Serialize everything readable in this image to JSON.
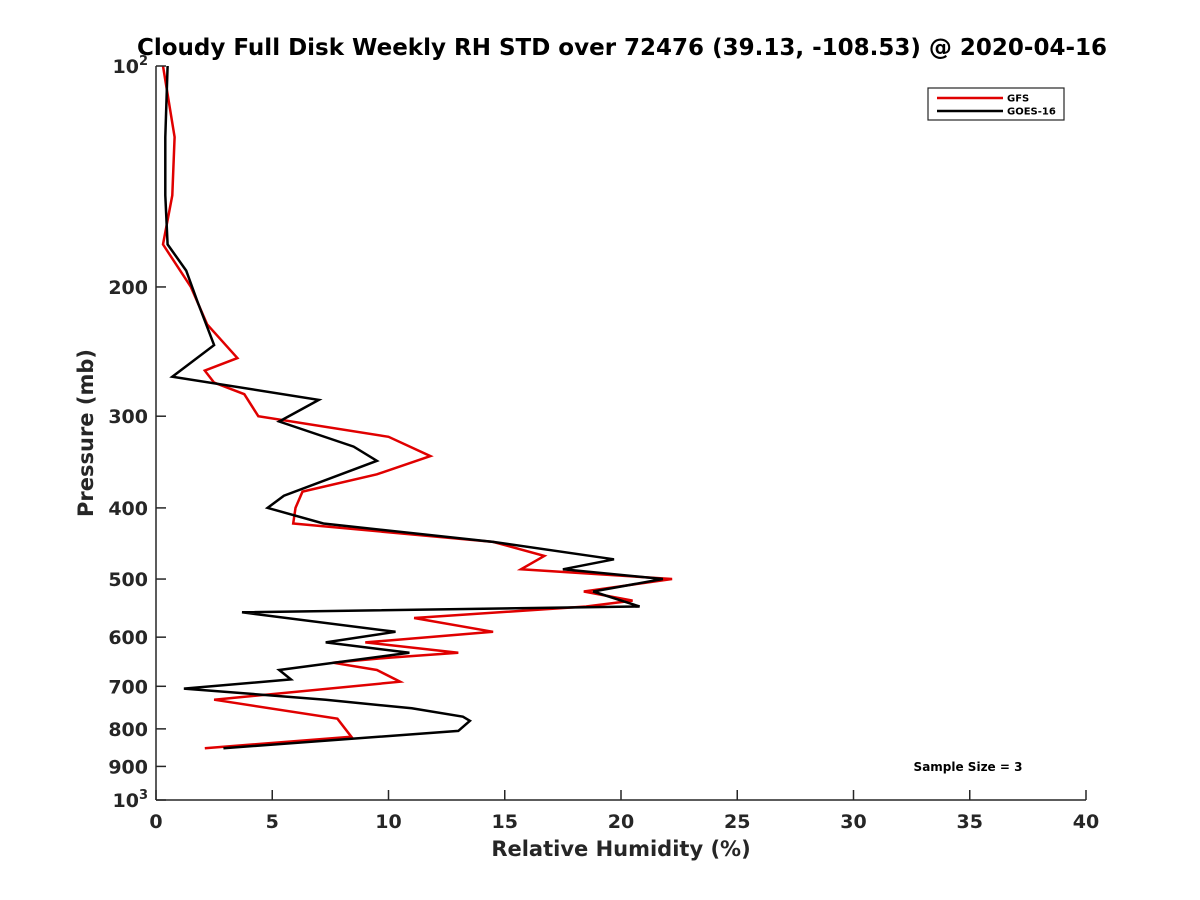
{
  "chart_data": {
    "type": "line",
    "title": "Cloudy Full Disk Weekly RH STD over 72476 (39.13, -108.53) @ 2020-04-16",
    "xlabel": "Relative Humidity (%)",
    "ylabel": "Pressure (mb)",
    "xlim": [
      0,
      40
    ],
    "ylim": [
      100,
      1000
    ],
    "y_scale": "log",
    "y_reversed": true,
    "grid": false,
    "legend_position": "top-right",
    "x_ticks": [
      0,
      5,
      10,
      15,
      20,
      25,
      30,
      35,
      40
    ],
    "x_tick_labels": [
      "0",
      "5",
      "10",
      "15",
      "20",
      "25",
      "30",
      "35",
      "40"
    ],
    "y_ticks": [
      100,
      200,
      300,
      400,
      500,
      600,
      700,
      800,
      900,
      1000
    ],
    "y_tick_labels": [
      {
        "value": 100,
        "base": "10",
        "sup": "2"
      },
      {
        "value": 200,
        "base": "200",
        "sup": ""
      },
      {
        "value": 300,
        "base": "300",
        "sup": ""
      },
      {
        "value": 400,
        "base": "400",
        "sup": ""
      },
      {
        "value": 500,
        "base": "500",
        "sup": ""
      },
      {
        "value": 600,
        "base": "600",
        "sup": ""
      },
      {
        "value": 700,
        "base": "700",
        "sup": ""
      },
      {
        "value": 800,
        "base": "800",
        "sup": ""
      },
      {
        "value": 900,
        "base": "900",
        "sup": ""
      },
      {
        "value": 1000,
        "base": "10",
        "sup": "3"
      }
    ],
    "annotation": "Sample Size = 3",
    "series": [
      {
        "name": "GFS",
        "color": "#e00000",
        "points": [
          [
            0.3,
            100
          ],
          [
            0.8,
            125
          ],
          [
            0.7,
            150
          ],
          [
            0.3,
            175
          ],
          [
            1.5,
            200
          ],
          [
            2.2,
            225
          ],
          [
            3.5,
            250
          ],
          [
            2.1,
            260
          ],
          [
            2.5,
            270
          ],
          [
            3.8,
            280
          ],
          [
            4.4,
            300
          ],
          [
            10.0,
            320
          ],
          [
            11.8,
            340
          ],
          [
            9.5,
            360
          ],
          [
            6.3,
            380
          ],
          [
            6.0,
            400
          ],
          [
            5.9,
            420
          ],
          [
            14.5,
            445
          ],
          [
            16.7,
            465
          ],
          [
            15.7,
            485
          ],
          [
            22.2,
            500
          ],
          [
            18.4,
            520
          ],
          [
            20.5,
            535
          ],
          [
            18.5,
            545
          ],
          [
            11.1,
            565
          ],
          [
            14.5,
            590
          ],
          [
            9.0,
            610
          ],
          [
            13.0,
            630
          ],
          [
            10.0,
            640
          ],
          [
            7.6,
            650
          ],
          [
            9.5,
            665
          ],
          [
            10.5,
            690
          ],
          [
            2.5,
            730
          ],
          [
            7.8,
            775
          ],
          [
            8.4,
            820
          ],
          [
            2.1,
            850
          ]
        ]
      },
      {
        "name": "GOES-16",
        "color": "#000000",
        "points": [
          [
            0.5,
            100
          ],
          [
            0.4,
            125
          ],
          [
            0.4,
            150
          ],
          [
            0.5,
            175
          ],
          [
            1.3,
            190
          ],
          [
            1.8,
            210
          ],
          [
            2.5,
            240
          ],
          [
            0.7,
            265
          ],
          [
            7.0,
            285
          ],
          [
            5.3,
            305
          ],
          [
            8.5,
            330
          ],
          [
            9.5,
            345
          ],
          [
            5.5,
            385
          ],
          [
            4.8,
            400
          ],
          [
            7.2,
            420
          ],
          [
            14.5,
            445
          ],
          [
            19.7,
            470
          ],
          [
            17.5,
            485
          ],
          [
            21.8,
            500
          ],
          [
            18.8,
            520
          ],
          [
            20.8,
            545
          ],
          [
            3.7,
            555
          ],
          [
            10.3,
            590
          ],
          [
            7.3,
            610
          ],
          [
            10.9,
            630
          ],
          [
            5.3,
            665
          ],
          [
            5.8,
            685
          ],
          [
            1.2,
            705
          ],
          [
            7.3,
            730
          ],
          [
            11.0,
            750
          ],
          [
            13.2,
            770
          ],
          [
            13.5,
            780
          ],
          [
            13.0,
            805
          ],
          [
            2.9,
            850
          ]
        ]
      }
    ]
  }
}
